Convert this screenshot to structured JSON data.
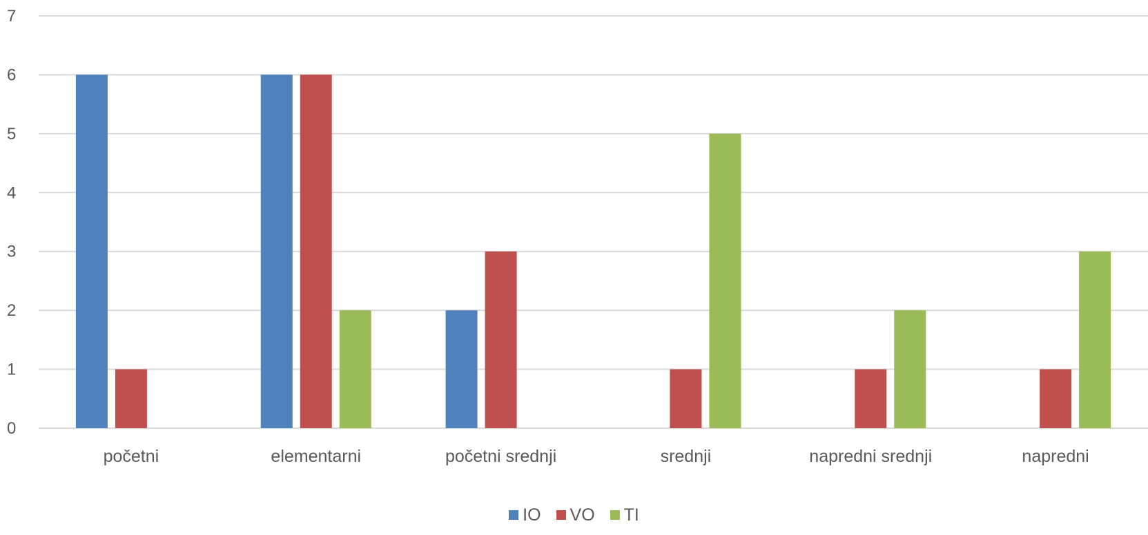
{
  "chart_data": {
    "type": "bar",
    "title": "",
    "xlabel": "",
    "ylabel": "",
    "categories": [
      "početni",
      "elementarni",
      "početni srednji",
      "srednji",
      "napredni srednji",
      "napredni"
    ],
    "series": [
      {
        "name": "IO",
        "color": "#4F81BD",
        "values": [
          6,
          6,
          2,
          0,
          0,
          0
        ]
      },
      {
        "name": "VO",
        "color": "#C0504D",
        "values": [
          1,
          6,
          3,
          1,
          1,
          1
        ]
      },
      {
        "name": "TI",
        "color": "#9BBB59",
        "values": [
          0,
          2,
          0,
          5,
          2,
          3
        ]
      }
    ],
    "ylim": [
      0,
      7
    ],
    "yticks": [
      "0",
      "1",
      "2",
      "3",
      "4",
      "5",
      "6",
      "7"
    ],
    "grid": true,
    "gridline_color": "#D9D9D9",
    "legend_position": "bottom"
  }
}
